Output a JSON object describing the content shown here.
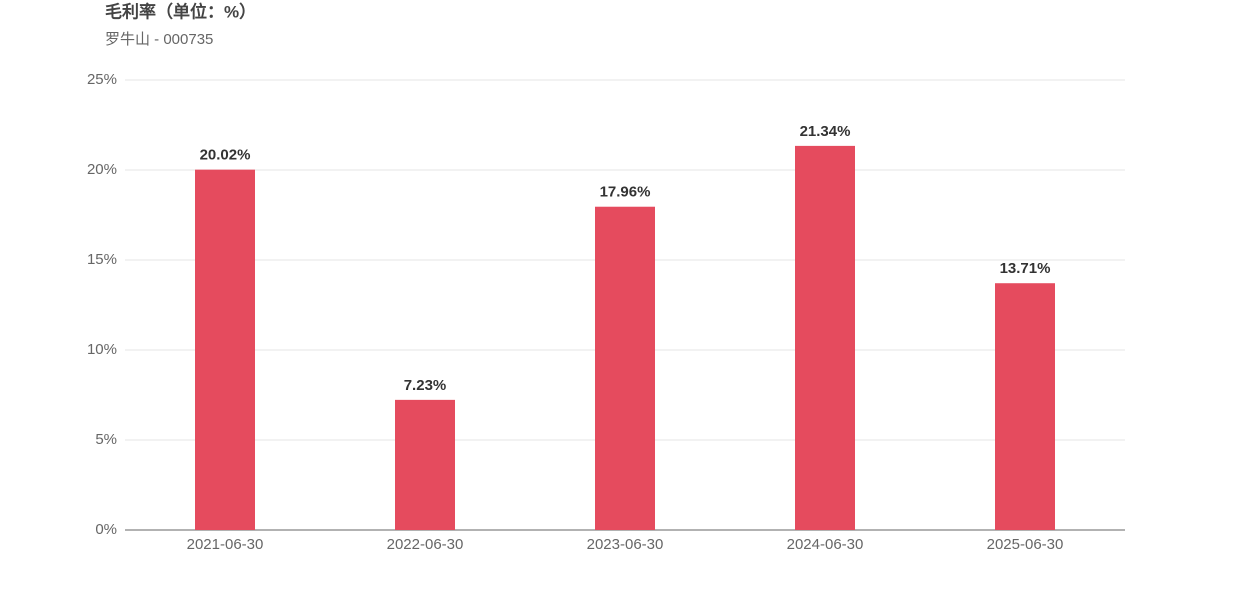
{
  "chart_data": {
    "type": "bar",
    "title": "毛利率（单位：%）",
    "subtitle": "罗牛山 - 000735",
    "categories": [
      "2021-06-30",
      "2022-06-30",
      "2023-06-30",
      "2024-06-30",
      "2025-06-30"
    ],
    "values": [
      20.02,
      7.23,
      17.96,
      21.34,
      13.71
    ],
    "value_labels": [
      "20.02%",
      "7.23%",
      "17.96%",
      "21.34%",
      "13.71%"
    ],
    "color": "#e54b5e",
    "ylim": [
      0,
      25
    ],
    "yticks": [
      {
        "value": 0,
        "label": "0%"
      },
      {
        "value": 5,
        "label": "5%"
      },
      {
        "value": 10,
        "label": "10%"
      },
      {
        "value": 15,
        "label": "15%"
      },
      {
        "value": 20,
        "label": "20%"
      },
      {
        "value": 25,
        "label": "25%"
      }
    ],
    "grid": true
  }
}
